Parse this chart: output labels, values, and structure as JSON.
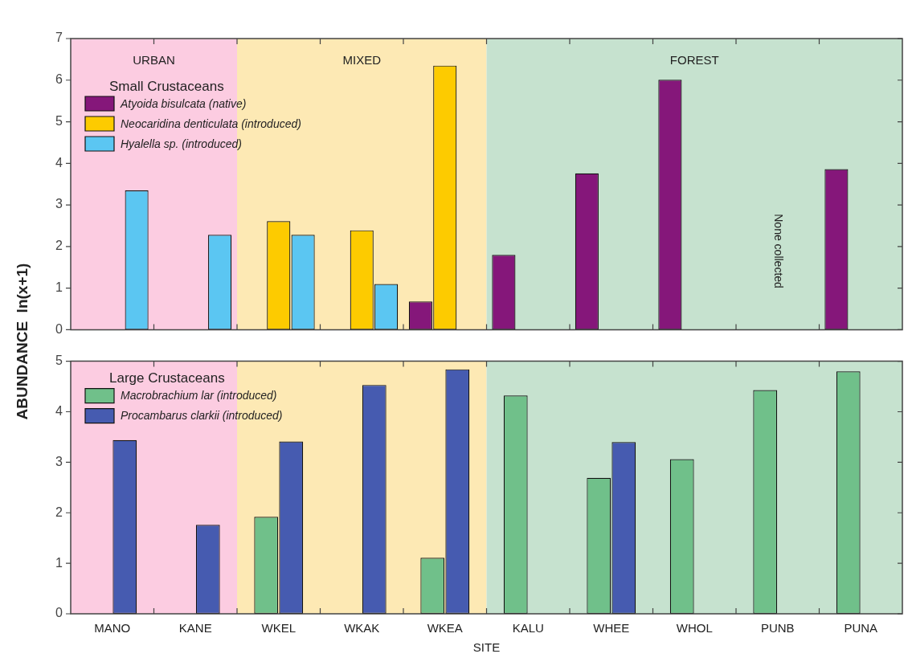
{
  "chart_data": [
    {
      "type": "bar",
      "ylabel": "ABUNDANCE  ln(x+1)",
      "legend_title": "Small Crustaceans",
      "legend": "top left",
      "tick_labels": "y",
      "grid": false,
      "categories": [
        "MANO",
        "KANE",
        "WKEL",
        "WKAK",
        "WKEA",
        "KALU",
        "WHEE",
        "WHOL",
        "PUNB",
        "PUNA"
      ],
      "series": [
        {
          "name": "Atyoida bisulcata (native)",
          "color": "#85177a",
          "values": [
            null,
            null,
            null,
            null,
            0.68,
            1.8,
            3.76,
            6.01,
            null,
            3.86
          ]
        },
        {
          "name": "Neocaridina denticulata (introduced)",
          "color": "#fdcb00",
          "values": [
            null,
            null,
            2.61,
            2.39,
            6.35,
            null,
            null,
            null,
            null,
            null
          ]
        },
        {
          "name": "Hyalella sp. (introduced)",
          "color": "#5bc6f2",
          "values": [
            3.35,
            2.28,
            2.28,
            1.1,
            null,
            null,
            null,
            null,
            null,
            null
          ]
        }
      ],
      "ylim": [
        0,
        7
      ],
      "yticks": [
        0,
        1,
        2,
        3,
        4,
        5,
        6,
        7
      ],
      "bands": [
        {
          "axis": "x",
          "from": "MANO",
          "to": "KANE",
          "label": "URBAN",
          "color": "#fccce1"
        },
        {
          "axis": "x",
          "from": "WKEL",
          "to": "WKEA",
          "label": "MIXED",
          "color": "#fde9b4"
        },
        {
          "axis": "x",
          "from": "KALU",
          "to": "PUNA",
          "label": "FOREST",
          "color": "#c6e2cf"
        }
      ],
      "annotations": [
        "None collected"
      ]
    },
    {
      "type": "bar",
      "xlabel": "SITE",
      "legend_title": "Large Crustaceans",
      "legend": "top left",
      "grid": false,
      "categories": [
        "MANO",
        "KANE",
        "WKEL",
        "WKAK",
        "WKEA",
        "KALU",
        "WHEE",
        "WHOL",
        "PUNB",
        "PUNA"
      ],
      "series": [
        {
          "name": "Macrobrachium lar (introduced)",
          "color": "#70c08a",
          "values": [
            null,
            null,
            1.92,
            null,
            1.11,
            4.32,
            2.69,
            3.06,
            4.43,
            4.8
          ]
        },
        {
          "name": "Procambarus clarkii (introduced)",
          "color": "#465bb0",
          "values": [
            3.44,
            1.76,
            3.41,
            4.53,
            4.84,
            null,
            3.4,
            null,
            null,
            null
          ]
        }
      ],
      "ylim": [
        0,
        5
      ],
      "yticks": [
        0,
        1,
        2,
        3,
        4,
        5
      ],
      "bands": [
        {
          "axis": "x",
          "from": "MANO",
          "to": "KANE",
          "color": "#fccce1"
        },
        {
          "axis": "x",
          "from": "WKEL",
          "to": "WKEA",
          "color": "#fde9b4"
        },
        {
          "axis": "x",
          "from": "KALU",
          "to": "PUNA",
          "color": "#c6e2cf"
        }
      ]
    }
  ]
}
